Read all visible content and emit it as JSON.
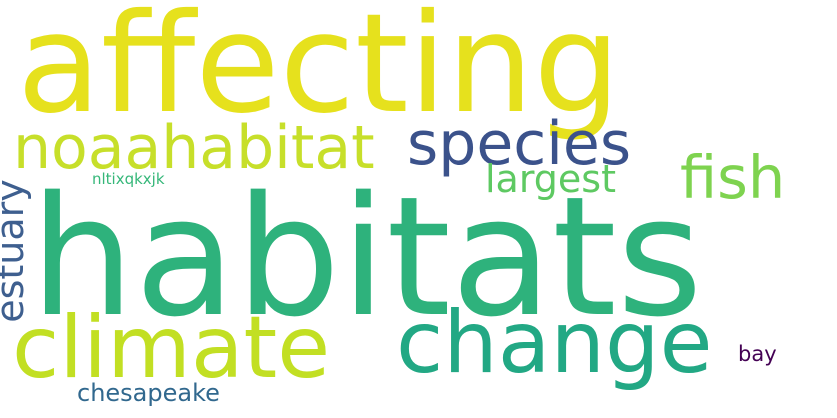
{
  "words": {
    "affecting": {
      "text": "affecting",
      "color": "#e6e11d"
    },
    "habitats": {
      "text": "habitats",
      "color": "#2eb27c"
    },
    "noaahabitat": {
      "text": "noaahabitat",
      "color": "#c7df2a"
    },
    "species": {
      "text": "species",
      "color": "#3b528b"
    },
    "fish": {
      "text": "fish",
      "color": "#7ed34f"
    },
    "largest": {
      "text": "largest",
      "color": "#5ec962"
    },
    "climate": {
      "text": "climate",
      "color": "#c2df23"
    },
    "change": {
      "text": "change",
      "color": "#22a884"
    },
    "estuary": {
      "text": "estuary",
      "color": "#3e5f8f"
    },
    "bay": {
      "text": "bay",
      "color": "#440154"
    },
    "chesapeake": {
      "text": "chesapeake",
      "color": "#31688e"
    },
    "nltixqkxjk": {
      "text": "nltixqkxjk",
      "color": "#35b779"
    }
  }
}
